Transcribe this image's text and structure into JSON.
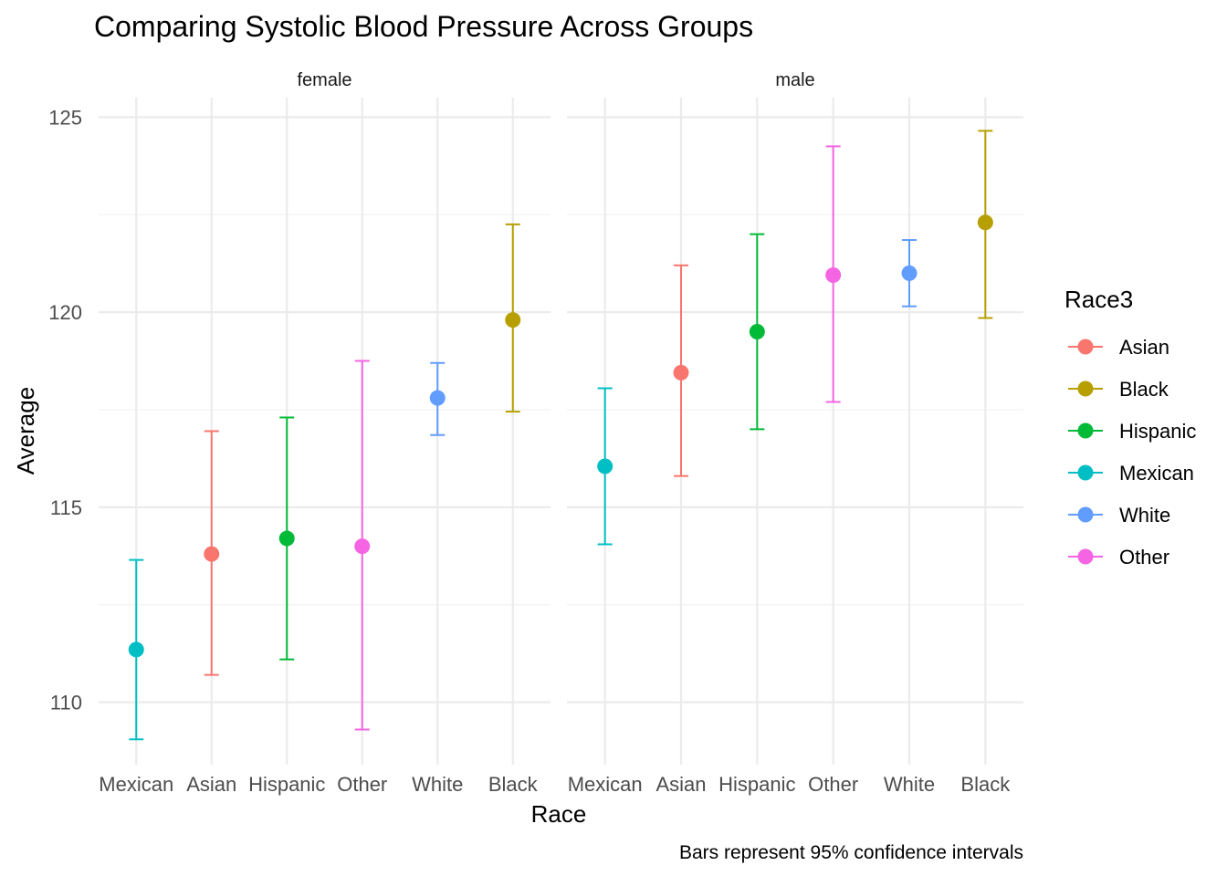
{
  "chart_data": {
    "type": "scatter",
    "title": "Comparing Systolic Blood Pressure Across Groups",
    "xlabel": "Race",
    "ylabel": "Average",
    "caption": "Bars represent 95% confidence intervals",
    "ylim": [
      108.4,
      125.5
    ],
    "yticks": [
      110,
      115,
      120,
      125
    ],
    "grid": true,
    "legend_placement": "right",
    "legend": {
      "title": "Race3",
      "entries": [
        {
          "label": "Asian",
          "color": "#F8766D"
        },
        {
          "label": "Black",
          "color": "#B79F00"
        },
        {
          "label": "Hispanic",
          "color": "#00BA38"
        },
        {
          "label": "Mexican",
          "color": "#00BFC4"
        },
        {
          "label": "White",
          "color": "#619CFF"
        },
        {
          "label": "Other",
          "color": "#F564E3"
        }
      ]
    },
    "categories": [
      "Mexican",
      "Asian",
      "Hispanic",
      "Other",
      "White",
      "Black"
    ],
    "facets": [
      {
        "name": "female",
        "points": [
          {
            "race": "Mexican",
            "mean": 111.35,
            "lower": 109.05,
            "upper": 113.65
          },
          {
            "race": "Asian",
            "mean": 113.8,
            "lower": 110.7,
            "upper": 116.95
          },
          {
            "race": "Hispanic",
            "mean": 114.2,
            "lower": 111.1,
            "upper": 117.3
          },
          {
            "race": "Other",
            "mean": 114.0,
            "lower": 109.3,
            "upper": 118.75
          },
          {
            "race": "White",
            "mean": 117.8,
            "lower": 116.85,
            "upper": 118.7
          },
          {
            "race": "Black",
            "mean": 119.8,
            "lower": 117.45,
            "upper": 122.25
          }
        ]
      },
      {
        "name": "male",
        "points": [
          {
            "race": "Mexican",
            "mean": 116.05,
            "lower": 114.05,
            "upper": 118.05
          },
          {
            "race": "Asian",
            "mean": 118.45,
            "lower": 115.8,
            "upper": 121.2
          },
          {
            "race": "Hispanic",
            "mean": 119.5,
            "lower": 117.0,
            "upper": 122.0
          },
          {
            "race": "Other",
            "mean": 120.95,
            "lower": 117.7,
            "upper": 124.25
          },
          {
            "race": "White",
            "mean": 121.0,
            "lower": 120.15,
            "upper": 121.85
          },
          {
            "race": "Black",
            "mean": 122.3,
            "lower": 119.85,
            "upper": 124.65
          }
        ]
      }
    ]
  }
}
